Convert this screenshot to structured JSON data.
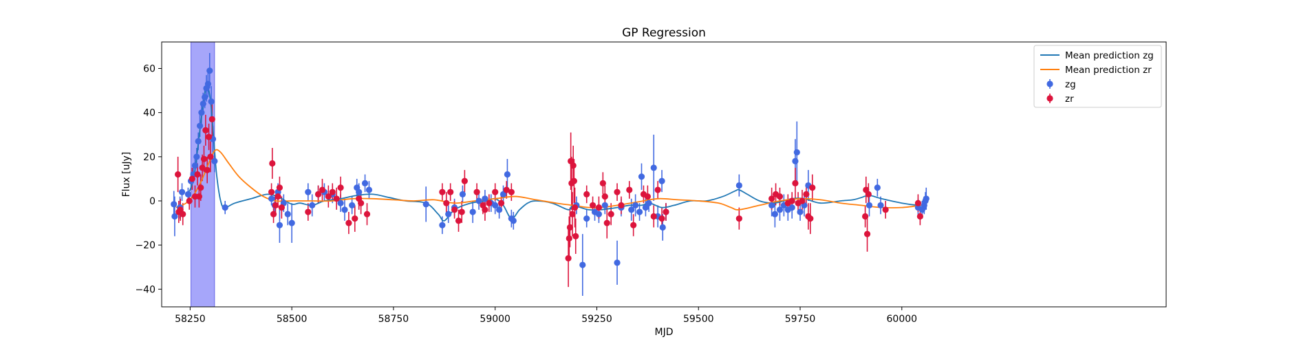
{
  "chart_data": {
    "type": "scatter",
    "title": "GP Regression",
    "xlabel": "MJD",
    "ylabel": "Flux [uJy]",
    "xlim": [
      58180,
      60650
    ],
    "ylim": [
      -48,
      72
    ],
    "xticks": [
      58250,
      58500,
      58750,
      59000,
      59250,
      59500,
      59750,
      60000
    ],
    "yticks": [
      -40,
      -20,
      0,
      20,
      40,
      60
    ],
    "legend_position": "upper-right",
    "grid": false,
    "highlight_band": {
      "x0": 58252,
      "x1": 58310,
      "color": "#a6a6fa"
    },
    "lines": [
      {
        "name": "Mean prediction zg",
        "color": "#1f77b4",
        "x": [
          58240,
          58252,
          58262,
          58270,
          58278,
          58284,
          58290,
          58296,
          58302,
          58308,
          58315,
          58325,
          58335,
          58360,
          58400,
          58440,
          58470,
          58500,
          58520,
          58550,
          58580,
          58620,
          58660,
          58700,
          58740,
          58780,
          58830,
          58860,
          58875,
          58900,
          58940,
          58980,
          59000,
          59020,
          59040,
          59060,
          59080,
          59100,
          59140,
          59180,
          59190,
          59210,
          59230,
          59260,
          59300,
          59330,
          59360,
          59380,
          59410,
          59440,
          59480,
          59520,
          59560,
          59590,
          59600,
          59620,
          59650,
          59680,
          59700,
          59730,
          59760,
          59800,
          59850,
          59880,
          59900,
          59920,
          59950,
          60000,
          60040,
          60060
        ],
        "y": [
          2,
          6,
          14,
          26,
          38,
          46,
          52,
          50,
          42,
          28,
          12,
          0,
          -3,
          -1,
          1,
          3,
          1.5,
          -1.5,
          -1,
          -2,
          0,
          1,
          2.5,
          3,
          1.5,
          0,
          -1,
          -6,
          -9,
          -4,
          -1,
          0,
          1,
          -2,
          -8,
          -4,
          -1,
          0,
          -1,
          -4,
          -2,
          -3,
          -4,
          -4,
          -3,
          -2,
          -2,
          -1,
          -3,
          -2,
          0,
          0,
          2,
          4.5,
          5,
          3,
          0,
          -1,
          -0.5,
          1,
          1,
          -1,
          0,
          0.5,
          1.5,
          2.5,
          1,
          -1,
          -2,
          -2
        ]
      },
      {
        "name": "Mean prediction zr",
        "color": "#ff7f0e",
        "x": [
          58215,
          58240,
          58260,
          58280,
          58300,
          58312,
          58325,
          58345,
          58370,
          58400,
          58430,
          58460,
          58500,
          58550,
          58600,
          58650,
          58700,
          58750,
          58800,
          58850,
          58900,
          58950,
          59000,
          59050,
          59100,
          59150,
          59190,
          59230,
          59260,
          59300,
          59350,
          59400,
          59450,
          59500,
          59550,
          59580,
          59600,
          59650,
          59700,
          59750,
          59800,
          59850,
          59900,
          59950,
          60000,
          60050,
          60060
        ],
        "y": [
          -3,
          -1,
          3,
          10,
          19,
          23,
          22,
          17,
          11,
          6,
          2,
          0,
          0,
          0,
          0,
          1,
          1,
          0.5,
          0,
          0.5,
          -1,
          0,
          1,
          2,
          0.5,
          -1,
          -2,
          -3,
          -3,
          -2,
          -0.5,
          1,
          0.5,
          0,
          -1,
          -3,
          -4,
          -2,
          0,
          1,
          0.5,
          -1,
          -2,
          -3,
          -3,
          -2,
          -2
        ]
      }
    ],
    "series": [
      {
        "name": "zg",
        "color": "#4169e1",
        "points": [
          [
            58210,
            -1.5,
            6
          ],
          [
            58212,
            -7,
            9
          ],
          [
            58225,
            -3,
            5
          ],
          [
            58230,
            4,
            4
          ],
          [
            58245,
            3,
            3
          ],
          [
            58252,
            9,
            4
          ],
          [
            58258,
            12,
            4
          ],
          [
            58262,
            16,
            4
          ],
          [
            58266,
            20,
            4
          ],
          [
            58270,
            27,
            4
          ],
          [
            58274,
            34,
            5
          ],
          [
            58278,
            40,
            5
          ],
          [
            58282,
            44,
            5
          ],
          [
            58286,
            47,
            5
          ],
          [
            58290,
            51,
            6
          ],
          [
            58294,
            53,
            6
          ],
          [
            58298,
            59,
            8
          ],
          [
            58302,
            45,
            7
          ],
          [
            58306,
            28,
            6
          ],
          [
            58310,
            18,
            5
          ],
          [
            58336,
            -3,
            3
          ],
          [
            58450,
            1,
            3
          ],
          [
            58458,
            -2,
            4
          ],
          [
            58466,
            4,
            4
          ],
          [
            58470,
            -11,
            8
          ],
          [
            58480,
            -1,
            4
          ],
          [
            58490,
            -6,
            5
          ],
          [
            58500,
            -10,
            9
          ],
          [
            58540,
            4,
            4
          ],
          [
            58550,
            -2,
            5
          ],
          [
            58565,
            3,
            4
          ],
          [
            58580,
            4,
            4
          ],
          [
            58600,
            3,
            4
          ],
          [
            58620,
            -1,
            4
          ],
          [
            58630,
            -4,
            5
          ],
          [
            58648,
            -2,
            4
          ],
          [
            58660,
            6,
            4
          ],
          [
            58665,
            4,
            4
          ],
          [
            58680,
            8,
            4
          ],
          [
            58690,
            5,
            4
          ],
          [
            58830,
            -1.5,
            8
          ],
          [
            58870,
            -11,
            4
          ],
          [
            58885,
            -6,
            4
          ],
          [
            58900,
            -3,
            4
          ],
          [
            58920,
            3,
            4
          ],
          [
            58945,
            -5,
            5
          ],
          [
            58960,
            0,
            4
          ],
          [
            58975,
            1,
            4
          ],
          [
            58990,
            -1,
            4
          ],
          [
            59000,
            -2,
            4
          ],
          [
            59010,
            -4,
            4
          ],
          [
            59020,
            3,
            4
          ],
          [
            59030,
            12,
            7
          ],
          [
            59040,
            -8,
            4
          ],
          [
            59045,
            -9,
            4
          ],
          [
            59200,
            -2,
            4
          ],
          [
            59215,
            -29,
            14
          ],
          [
            59225,
            -8,
            4
          ],
          [
            59245,
            -5,
            4
          ],
          [
            59255,
            -6,
            4
          ],
          [
            59270,
            -2,
            4
          ],
          [
            59300,
            -28,
            10
          ],
          [
            59310,
            -3,
            4
          ],
          [
            59335,
            -4,
            5
          ],
          [
            59345,
            -2,
            5
          ],
          [
            59355,
            -5,
            4
          ],
          [
            59360,
            11,
            6
          ],
          [
            59370,
            -3,
            4
          ],
          [
            59378,
            -1,
            4
          ],
          [
            59390,
            15,
            15
          ],
          [
            59400,
            -7,
            5
          ],
          [
            59410,
            9,
            5
          ],
          [
            59412,
            -12,
            6
          ],
          [
            59420,
            -5,
            4
          ],
          [
            59600,
            7,
            5
          ],
          [
            59680,
            -2,
            5
          ],
          [
            59688,
            -6,
            6
          ],
          [
            59700,
            -4,
            5
          ],
          [
            59710,
            -2,
            5
          ],
          [
            59720,
            -4,
            5
          ],
          [
            59730,
            -3,
            5
          ],
          [
            59738,
            18,
            10
          ],
          [
            59742,
            22,
            14
          ],
          [
            59750,
            -5,
            4
          ],
          [
            59760,
            -2,
            5
          ],
          [
            59770,
            7,
            7
          ],
          [
            59920,
            -2,
            5
          ],
          [
            59940,
            6,
            4
          ],
          [
            59948,
            -2,
            4
          ],
          [
            60040,
            -3,
            4
          ],
          [
            60050,
            -4,
            4
          ],
          [
            60055,
            -2,
            4
          ],
          [
            60058,
            0,
            4
          ],
          [
            60060,
            1,
            5
          ]
        ]
      },
      {
        "name": "zr",
        "color": "#dc143c",
        "points": [
          [
            58220,
            12,
            8
          ],
          [
            58222,
            -5,
            5
          ],
          [
            58226,
            -4,
            5
          ],
          [
            58232,
            -6,
            5
          ],
          [
            58248,
            0,
            4
          ],
          [
            58255,
            10,
            5
          ],
          [
            58262,
            2,
            5
          ],
          [
            58268,
            12,
            5
          ],
          [
            58272,
            2,
            5
          ],
          [
            58276,
            6,
            6
          ],
          [
            58280,
            15,
            6
          ],
          [
            58284,
            19,
            6
          ],
          [
            58288,
            32,
            7
          ],
          [
            58292,
            14,
            6
          ],
          [
            58296,
            29,
            6
          ],
          [
            58300,
            20,
            7
          ],
          [
            58304,
            37,
            8
          ],
          [
            58450,
            4,
            4
          ],
          [
            58452,
            17,
            7
          ],
          [
            58455,
            -6,
            4
          ],
          [
            58460,
            -2,
            5
          ],
          [
            58466,
            2,
            5
          ],
          [
            58470,
            6,
            5
          ],
          [
            58475,
            -3,
            5
          ],
          [
            58540,
            -5,
            4
          ],
          [
            58565,
            3,
            4
          ],
          [
            58575,
            5,
            5
          ],
          [
            58590,
            2,
            5
          ],
          [
            58600,
            4,
            4
          ],
          [
            58610,
            1,
            5
          ],
          [
            58620,
            6,
            5
          ],
          [
            58640,
            -10,
            5
          ],
          [
            58655,
            -8,
            6
          ],
          [
            58665,
            1,
            5
          ],
          [
            58670,
            -1,
            5
          ],
          [
            58685,
            -6,
            5
          ],
          [
            58870,
            4,
            4
          ],
          [
            58880,
            -1,
            5
          ],
          [
            58890,
            4,
            4
          ],
          [
            58900,
            -4,
            4
          ],
          [
            58910,
            -9,
            5
          ],
          [
            58918,
            -5,
            5
          ],
          [
            58925,
            9,
            5
          ],
          [
            58955,
            4,
            4
          ],
          [
            58970,
            -2,
            4
          ],
          [
            58975,
            -4,
            5
          ],
          [
            58985,
            -1,
            4
          ],
          [
            59000,
            4,
            4
          ],
          [
            59015,
            -1,
            4
          ],
          [
            59028,
            5,
            4
          ],
          [
            59040,
            4,
            4
          ],
          [
            59180,
            -26,
            13
          ],
          [
            59182,
            -17,
            10
          ],
          [
            59184,
            -12,
            9
          ],
          [
            59186,
            18,
            13
          ],
          [
            59188,
            8,
            12
          ],
          [
            59190,
            -6,
            10
          ],
          [
            59192,
            16,
            9
          ],
          [
            59194,
            9,
            10
          ],
          [
            59196,
            -3,
            9
          ],
          [
            59198,
            -16,
            8
          ],
          [
            59225,
            3,
            4
          ],
          [
            59240,
            -2,
            4
          ],
          [
            59255,
            -3,
            5
          ],
          [
            59265,
            8,
            5
          ],
          [
            59270,
            2,
            5
          ],
          [
            59275,
            -10,
            7
          ],
          [
            59285,
            -6,
            5
          ],
          [
            59300,
            4,
            4
          ],
          [
            59310,
            -2,
            4
          ],
          [
            59330,
            5,
            4
          ],
          [
            59340,
            -11,
            5
          ],
          [
            59365,
            3,
            4
          ],
          [
            59375,
            2,
            5
          ],
          [
            59390,
            -7,
            5
          ],
          [
            59400,
            5,
            4
          ],
          [
            59410,
            -8,
            5
          ],
          [
            59420,
            -5,
            4
          ],
          [
            59600,
            -8,
            5
          ],
          [
            59680,
            1,
            5
          ],
          [
            59690,
            3,
            5
          ],
          [
            59700,
            2,
            4
          ],
          [
            59720,
            -1,
            4
          ],
          [
            59730,
            0,
            4
          ],
          [
            59738,
            8,
            7
          ],
          [
            59745,
            -1,
            5
          ],
          [
            59755,
            0,
            5
          ],
          [
            59765,
            3,
            5
          ],
          [
            59770,
            -7,
            6
          ],
          [
            59775,
            -8,
            7
          ],
          [
            59780,
            6,
            6
          ],
          [
            59910,
            -7,
            5
          ],
          [
            59912,
            5,
            6
          ],
          [
            59915,
            -15,
            8
          ],
          [
            59918,
            3,
            5
          ],
          [
            59960,
            -4,
            4
          ],
          [
            60040,
            -1,
            4
          ],
          [
            60045,
            -7,
            4
          ]
        ]
      }
    ]
  }
}
